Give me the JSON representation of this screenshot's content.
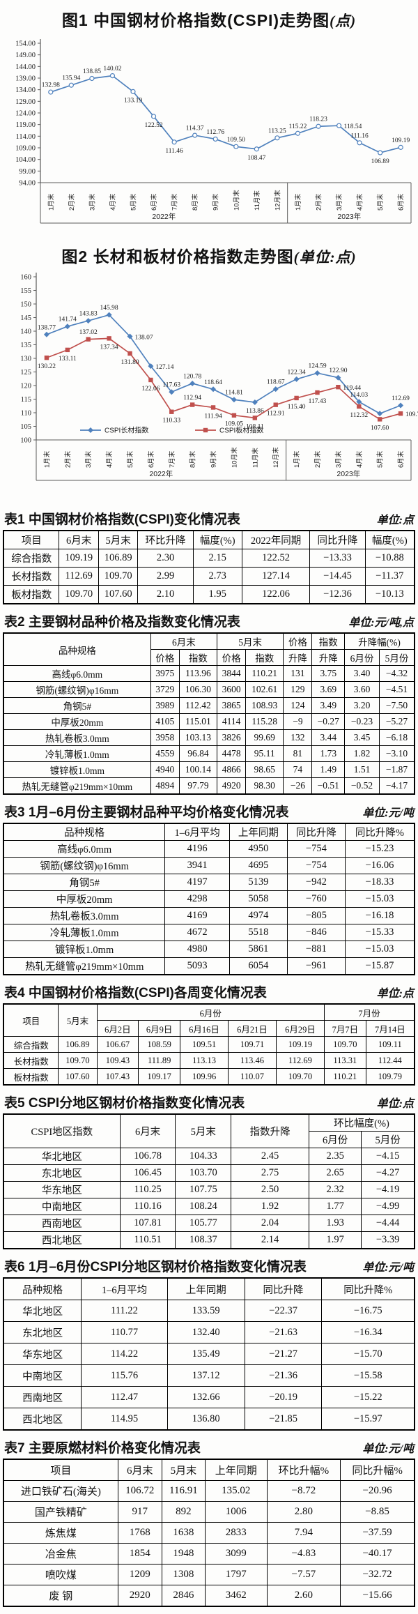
{
  "figures": {
    "fig1": {
      "title_main": "图1  中国钢材价格指数(CSPI)走势图",
      "title_unit": "(点)"
    },
    "fig2": {
      "title_main": "图2  长材和板材价格指数走势图",
      "title_unit": "(单位:点)"
    }
  },
  "chart_data": [
    {
      "id": "fig1",
      "type": "line",
      "title": "图1 中国钢材价格指数(CSPI)走势图(点)",
      "x": [
        "1月末",
        "2月末",
        "3月末",
        "4月末",
        "5月末",
        "6月末",
        "7月末",
        "8月末",
        "9月末",
        "10月末",
        "11月末",
        "12月末",
        "1月末",
        "2月末",
        "3月末",
        "4月末",
        "5月末",
        "6月末"
      ],
      "x_groups": [
        {
          "label": "2022年",
          "span": 12
        },
        {
          "label": "2023年",
          "span": 6
        }
      ],
      "ylim": [
        94,
        154
      ],
      "yticks": [
        "154.00",
        "149.00",
        "144.00",
        "139.00",
        "134.00",
        "129.00",
        "124.00",
        "119.00",
        "114.00",
        "109.00",
        "104.00",
        "99.00",
        "94.00"
      ],
      "grid": false,
      "legend_visible": false,
      "series": [
        {
          "name": "CSPI综合指数",
          "color": "#4f81bd",
          "marker": "circle",
          "marker_fill": "#ffffff",
          "values": [
            132.98,
            135.94,
            138.85,
            140.02,
            133.19,
            122.52,
            111.46,
            114.37,
            112.76,
            109.5,
            108.47,
            113.25,
            115.22,
            118.23,
            118.54,
            111.16,
            106.89,
            109.19
          ],
          "label_pos": [
            "u",
            "u",
            "u",
            "u",
            "d",
            "d",
            "d",
            "u",
            "u",
            "u",
            "d",
            "u",
            "u",
            "u",
            "r",
            "u",
            "d",
            "u"
          ]
        }
      ]
    },
    {
      "id": "fig2",
      "type": "line",
      "title": "图2 长材和板材价格指数走势图(单位:点)",
      "x": [
        "1月末",
        "2月末",
        "3月末",
        "4月末",
        "5月末",
        "6月末",
        "7月末",
        "8月末",
        "9月末",
        "10月末",
        "11月末",
        "12月末",
        "1月末",
        "2月末",
        "3月末",
        "4月末",
        "5月末",
        "6月末"
      ],
      "x_groups": [
        {
          "label": "2022年",
          "span": 12
        },
        {
          "label": "2023年",
          "span": 6
        }
      ],
      "ylim": [
        100,
        160
      ],
      "yticks": [
        "160",
        "155",
        "150",
        "145",
        "140",
        "135",
        "130",
        "125",
        "120",
        "115",
        "110",
        "105",
        "100"
      ],
      "grid": false,
      "legend_visible": true,
      "series": [
        {
          "name": "CSPI长材指数",
          "color": "#4f81bd",
          "marker": "diamond",
          "values": [
            138.77,
            141.74,
            143.83,
            145.98,
            138.07,
            127.14,
            117.63,
            120.78,
            118.64,
            114.81,
            113.86,
            118.67,
            122.34,
            124.59,
            122.9,
            114.03,
            109.7,
            112.69
          ],
          "label_pos": [
            "u",
            "u",
            "u",
            "u",
            "r",
            "r",
            "u",
            "u",
            "u",
            "u",
            "d",
            "u",
            "u",
            "u",
            "u",
            "u",
            "n",
            "u"
          ]
        },
        {
          "name": "CSPI板材指数",
          "color": "#c0504d",
          "marker": "square",
          "values": [
            130.22,
            133.11,
            137.02,
            137.34,
            131.8,
            122.06,
            110.33,
            112.94,
            111.94,
            109.05,
            108.11,
            112.91,
            115.4,
            117.43,
            119.44,
            112.32,
            107.6,
            109.7
          ],
          "label_pos": [
            "d",
            "d",
            "u",
            "d",
            "d",
            "d",
            "d",
            "u",
            "d",
            "d",
            "d",
            "d",
            "d",
            "d",
            "r",
            "d",
            "d",
            "r"
          ]
        }
      ]
    }
  ],
  "tables": {
    "t1": {
      "title": "表1  中国钢材价格指数(CSPI)变化情况表",
      "unit": "单位:点",
      "columns": [
        "项目",
        "6月末",
        "5月末",
        "环比升降",
        "幅度(%)",
        "2022年同期",
        "同比升降",
        "幅度(%)"
      ],
      "rows": [
        [
          "综合指数",
          "109.19",
          "106.89",
          "2.30",
          "2.15",
          "122.52",
          "−13.33",
          "−10.88"
        ],
        [
          "长材指数",
          "112.69",
          "109.70",
          "2.99",
          "2.73",
          "127.14",
          "−14.45",
          "−11.37"
        ],
        [
          "板材指数",
          "109.70",
          "107.60",
          "2.10",
          "1.95",
          "122.06",
          "−12.36",
          "−10.13"
        ]
      ]
    },
    "t2": {
      "title": "表2  主要钢材品种价格及指数变化情况表",
      "unit": "单位:元/吨,点",
      "header": {
        "variety": "品种规格",
        "june": "6月末",
        "may": "5月末",
        "price": "价格",
        "index": "指数",
        "updown": "升降",
        "price_ud": "价格",
        "index_ud": "指数",
        "range": "升降幅(%)",
        "june_m": "6月份",
        "may_m": "5月份"
      },
      "rows": [
        [
          "高线φ6.0mm",
          "3975",
          "113.96",
          "3844",
          "110.21",
          "131",
          "3.75",
          "3.40",
          "−4.32"
        ],
        [
          "钢筋(螺纹钢)φ16mm",
          "3729",
          "106.30",
          "3600",
          "102.61",
          "129",
          "3.69",
          "3.60",
          "−4.51"
        ],
        [
          "角钢5#",
          "3989",
          "112.42",
          "3865",
          "108.93",
          "124",
          "3.49",
          "3.20",
          "−7.50"
        ],
        [
          "中厚板20mm",
          "4105",
          "115.01",
          "4114",
          "115.28",
          "−9",
          "−0.27",
          "−0.23",
          "−5.27"
        ],
        [
          "热轧卷板3.0mm",
          "3958",
          "103.13",
          "3826",
          "99.69",
          "132",
          "3.44",
          "3.45",
          "−6.18"
        ],
        [
          "冷轧薄板1.0mm",
          "4559",
          "96.84",
          "4478",
          "95.11",
          "81",
          "1.73",
          "1.82",
          "−3.10"
        ],
        [
          "镀锌板1.0mm",
          "4940",
          "100.14",
          "4866",
          "98.65",
          "74",
          "1.49",
          "1.51",
          "−1.87"
        ],
        [
          "热轧无缝管φ219mm×10mm",
          "4894",
          "97.79",
          "4920",
          "98.30",
          "−26",
          "−0.51",
          "−0.52",
          "−4.17"
        ]
      ]
    },
    "t3": {
      "title": "表3  1月–6月份主要钢材品种平均价格变化情况表",
      "unit": "单位:元/吨",
      "columns": [
        "品种规格",
        "1–6月平均",
        "上年同期",
        "同比升降",
        "同比升降%"
      ],
      "rows": [
        [
          "高线φ6.0mm",
          "4196",
          "4950",
          "−754",
          "−15.23"
        ],
        [
          "钢筋(螺纹钢)φ16mm",
          "3941",
          "4695",
          "−754",
          "−16.06"
        ],
        [
          "角钢5#",
          "4197",
          "5139",
          "−942",
          "−18.33"
        ],
        [
          "中厚板20mm",
          "4298",
          "5058",
          "−760",
          "−15.03"
        ],
        [
          "热轧卷板3.0mm",
          "4169",
          "4974",
          "−805",
          "−16.18"
        ],
        [
          "冷轧薄板1.0mm",
          "4672",
          "5518",
          "−846",
          "−15.33"
        ],
        [
          "镀锌板1.0mm",
          "4980",
          "5861",
          "−881",
          "−15.03"
        ],
        [
          "热轧无缝管φ219mm×10mm",
          "5093",
          "6054",
          "−961",
          "−15.87"
        ]
      ]
    },
    "t4": {
      "title": "表4  中国钢材价格指数(CSPI)各周变化情况表",
      "unit": "单位:点",
      "header": {
        "item": "项目",
        "may_end": "5月末",
        "june": "6月份",
        "july": "7月份"
      },
      "dates": [
        "6月2日",
        "6月9日",
        "6月16日",
        "6月21日",
        "6月29日",
        "7月7日",
        "7月14日"
      ],
      "rows": [
        [
          "综合指数",
          "106.89",
          "106.67",
          "108.59",
          "109.51",
          "109.71",
          "109.19",
          "109.70",
          "109.11"
        ],
        [
          "长材指数",
          "109.70",
          "109.43",
          "111.89",
          "113.13",
          "113.46",
          "112.69",
          "113.31",
          "112.44"
        ],
        [
          "板材指数",
          "107.60",
          "107.43",
          "109.17",
          "109.96",
          "110.07",
          "109.70",
          "110.21",
          "109.79"
        ]
      ]
    },
    "t5": {
      "title": "表5  CSPI分地区钢材价格指数变化情况表",
      "unit": "单位:点",
      "header": {
        "region": "CSPI地区指数",
        "june": "6月末",
        "may": "5月末",
        "updown": "指数升降",
        "mom": "环比幅度(%)",
        "june_m": "6月份",
        "may_m": "5月份"
      },
      "rows": [
        [
          "华北地区",
          "106.78",
          "104.33",
          "2.45",
          "2.35",
          "−4.15"
        ],
        [
          "东北地区",
          "106.45",
          "103.70",
          "2.75",
          "2.65",
          "−4.27"
        ],
        [
          "华东地区",
          "110.25",
          "107.75",
          "2.50",
          "2.32",
          "−4.19"
        ],
        [
          "中南地区",
          "110.16",
          "108.24",
          "1.92",
          "1.77",
          "−4.99"
        ],
        [
          "西南地区",
          "107.81",
          "105.77",
          "2.04",
          "1.93",
          "−4.44"
        ],
        [
          "西北地区",
          "110.51",
          "108.37",
          "2.14",
          "1.97",
          "−3.39"
        ]
      ]
    },
    "t6": {
      "title": "表6  1月–6月份CSPI分地区钢材价格指数变化情况表",
      "unit": "单位:元/吨",
      "columns": [
        "品种规格",
        "1–6月平均",
        "上年同期",
        "同比升降",
        "同比升降%"
      ],
      "rows": [
        [
          "华北地区",
          "111.22",
          "133.59",
          "−22.37",
          "−16.75"
        ],
        [
          "东北地区",
          "110.77",
          "132.40",
          "−21.63",
          "−16.34"
        ],
        [
          "华东地区",
          "114.22",
          "135.49",
          "−21.27",
          "−15.70"
        ],
        [
          "中南地区",
          "115.76",
          "137.12",
          "−21.36",
          "−15.58"
        ],
        [
          "西南地区",
          "112.47",
          "132.66",
          "−20.19",
          "−15.22"
        ],
        [
          "西北地区",
          "114.95",
          "136.80",
          "−21.85",
          "−15.97"
        ]
      ]
    },
    "t7": {
      "title": "表7  主要原燃材料价格变化情况表",
      "unit": "单位:元/吨",
      "columns": [
        "项目",
        "6月末",
        "5月末",
        "上年同期",
        "环比升幅%",
        "同比升幅%"
      ],
      "rows": [
        [
          "进口铁矿石(海关)",
          "106.72",
          "116.91",
          "135.02",
          "−8.72",
          "−20.96"
        ],
        [
          "国产铁精矿",
          "917",
          "892",
          "1006",
          "2.80",
          "−8.85"
        ],
        [
          "炼焦煤",
          "1768",
          "1638",
          "2833",
          "7.94",
          "−37.59"
        ],
        [
          "冶金焦",
          "1854",
          "1948",
          "3099",
          "−4.83",
          "−40.17"
        ],
        [
          "喷吹煤",
          "1209",
          "1308",
          "1797",
          "−7.57",
          "−32.72"
        ],
        [
          "废  钢",
          "2920",
          "2846",
          "3462",
          "2.60",
          "−15.66"
        ]
      ]
    }
  }
}
